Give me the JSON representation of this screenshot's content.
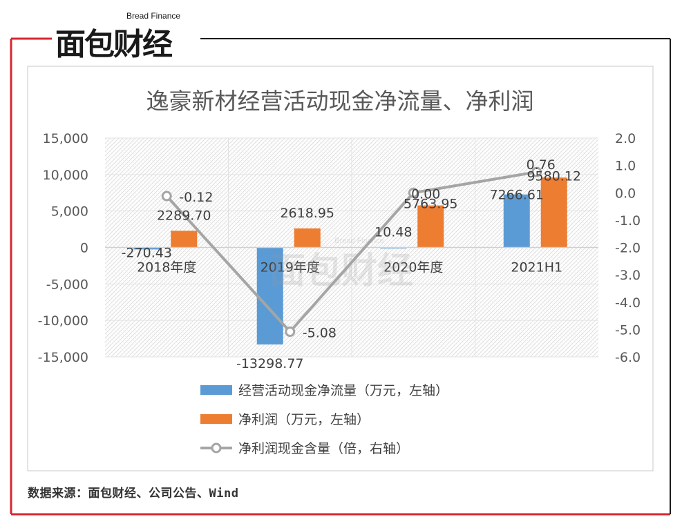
{
  "brand": {
    "name_cn": "面包财经",
    "name_en": "Bread Finance",
    "accent_color": "#d9262e"
  },
  "source_note": "数据来源：面包财经、公司公告、Wind",
  "chart_data": {
    "type": "bar",
    "title": "逸豪新材经营活动现金净流量、净利润",
    "categories": [
      "2018年度",
      "2019年度",
      "2020年度",
      "2021H1"
    ],
    "series": [
      {
        "name": "经营活动现金净流量（万元，左轴）",
        "type": "bar",
        "axis": "left",
        "color": "#5b9bd5",
        "values": [
          -270.43,
          -13298.77,
          10.48,
          7266.61
        ],
        "labels": [
          "-270.43",
          "-13298.77",
          "10.48",
          "7266.61"
        ]
      },
      {
        "name": "净利润（万元，左轴）",
        "type": "bar",
        "axis": "left",
        "color": "#ed7d31",
        "values": [
          2289.7,
          2618.95,
          5763.95,
          9580.12
        ],
        "labels": [
          "2289.70",
          "2618.95",
          "5763.95",
          "9580.12"
        ]
      },
      {
        "name": "净利润现金含量（倍，右轴）",
        "type": "line",
        "axis": "right",
        "color": "#a5a5a5",
        "values": [
          -0.12,
          -5.08,
          0.0,
          0.76
        ],
        "labels": [
          "-0.12",
          "-5.08",
          "0.00",
          "0.76"
        ]
      }
    ],
    "y_left": {
      "min": -15000,
      "max": 15000,
      "step": 5000,
      "ticks": [
        "-15,000",
        "-10,000",
        "-5,000",
        "0",
        "5,000",
        "10,000",
        "15,000"
      ]
    },
    "y_right": {
      "min": -6.0,
      "max": 2.0,
      "step": 1.0,
      "ticks": [
        "-6.0",
        "-5.0",
        "-4.0",
        "-3.0",
        "-2.0",
        "-1.0",
        "0.0",
        "1.0",
        "2.0"
      ]
    },
    "legend_position": "bottom",
    "plot_background": "hatched"
  }
}
